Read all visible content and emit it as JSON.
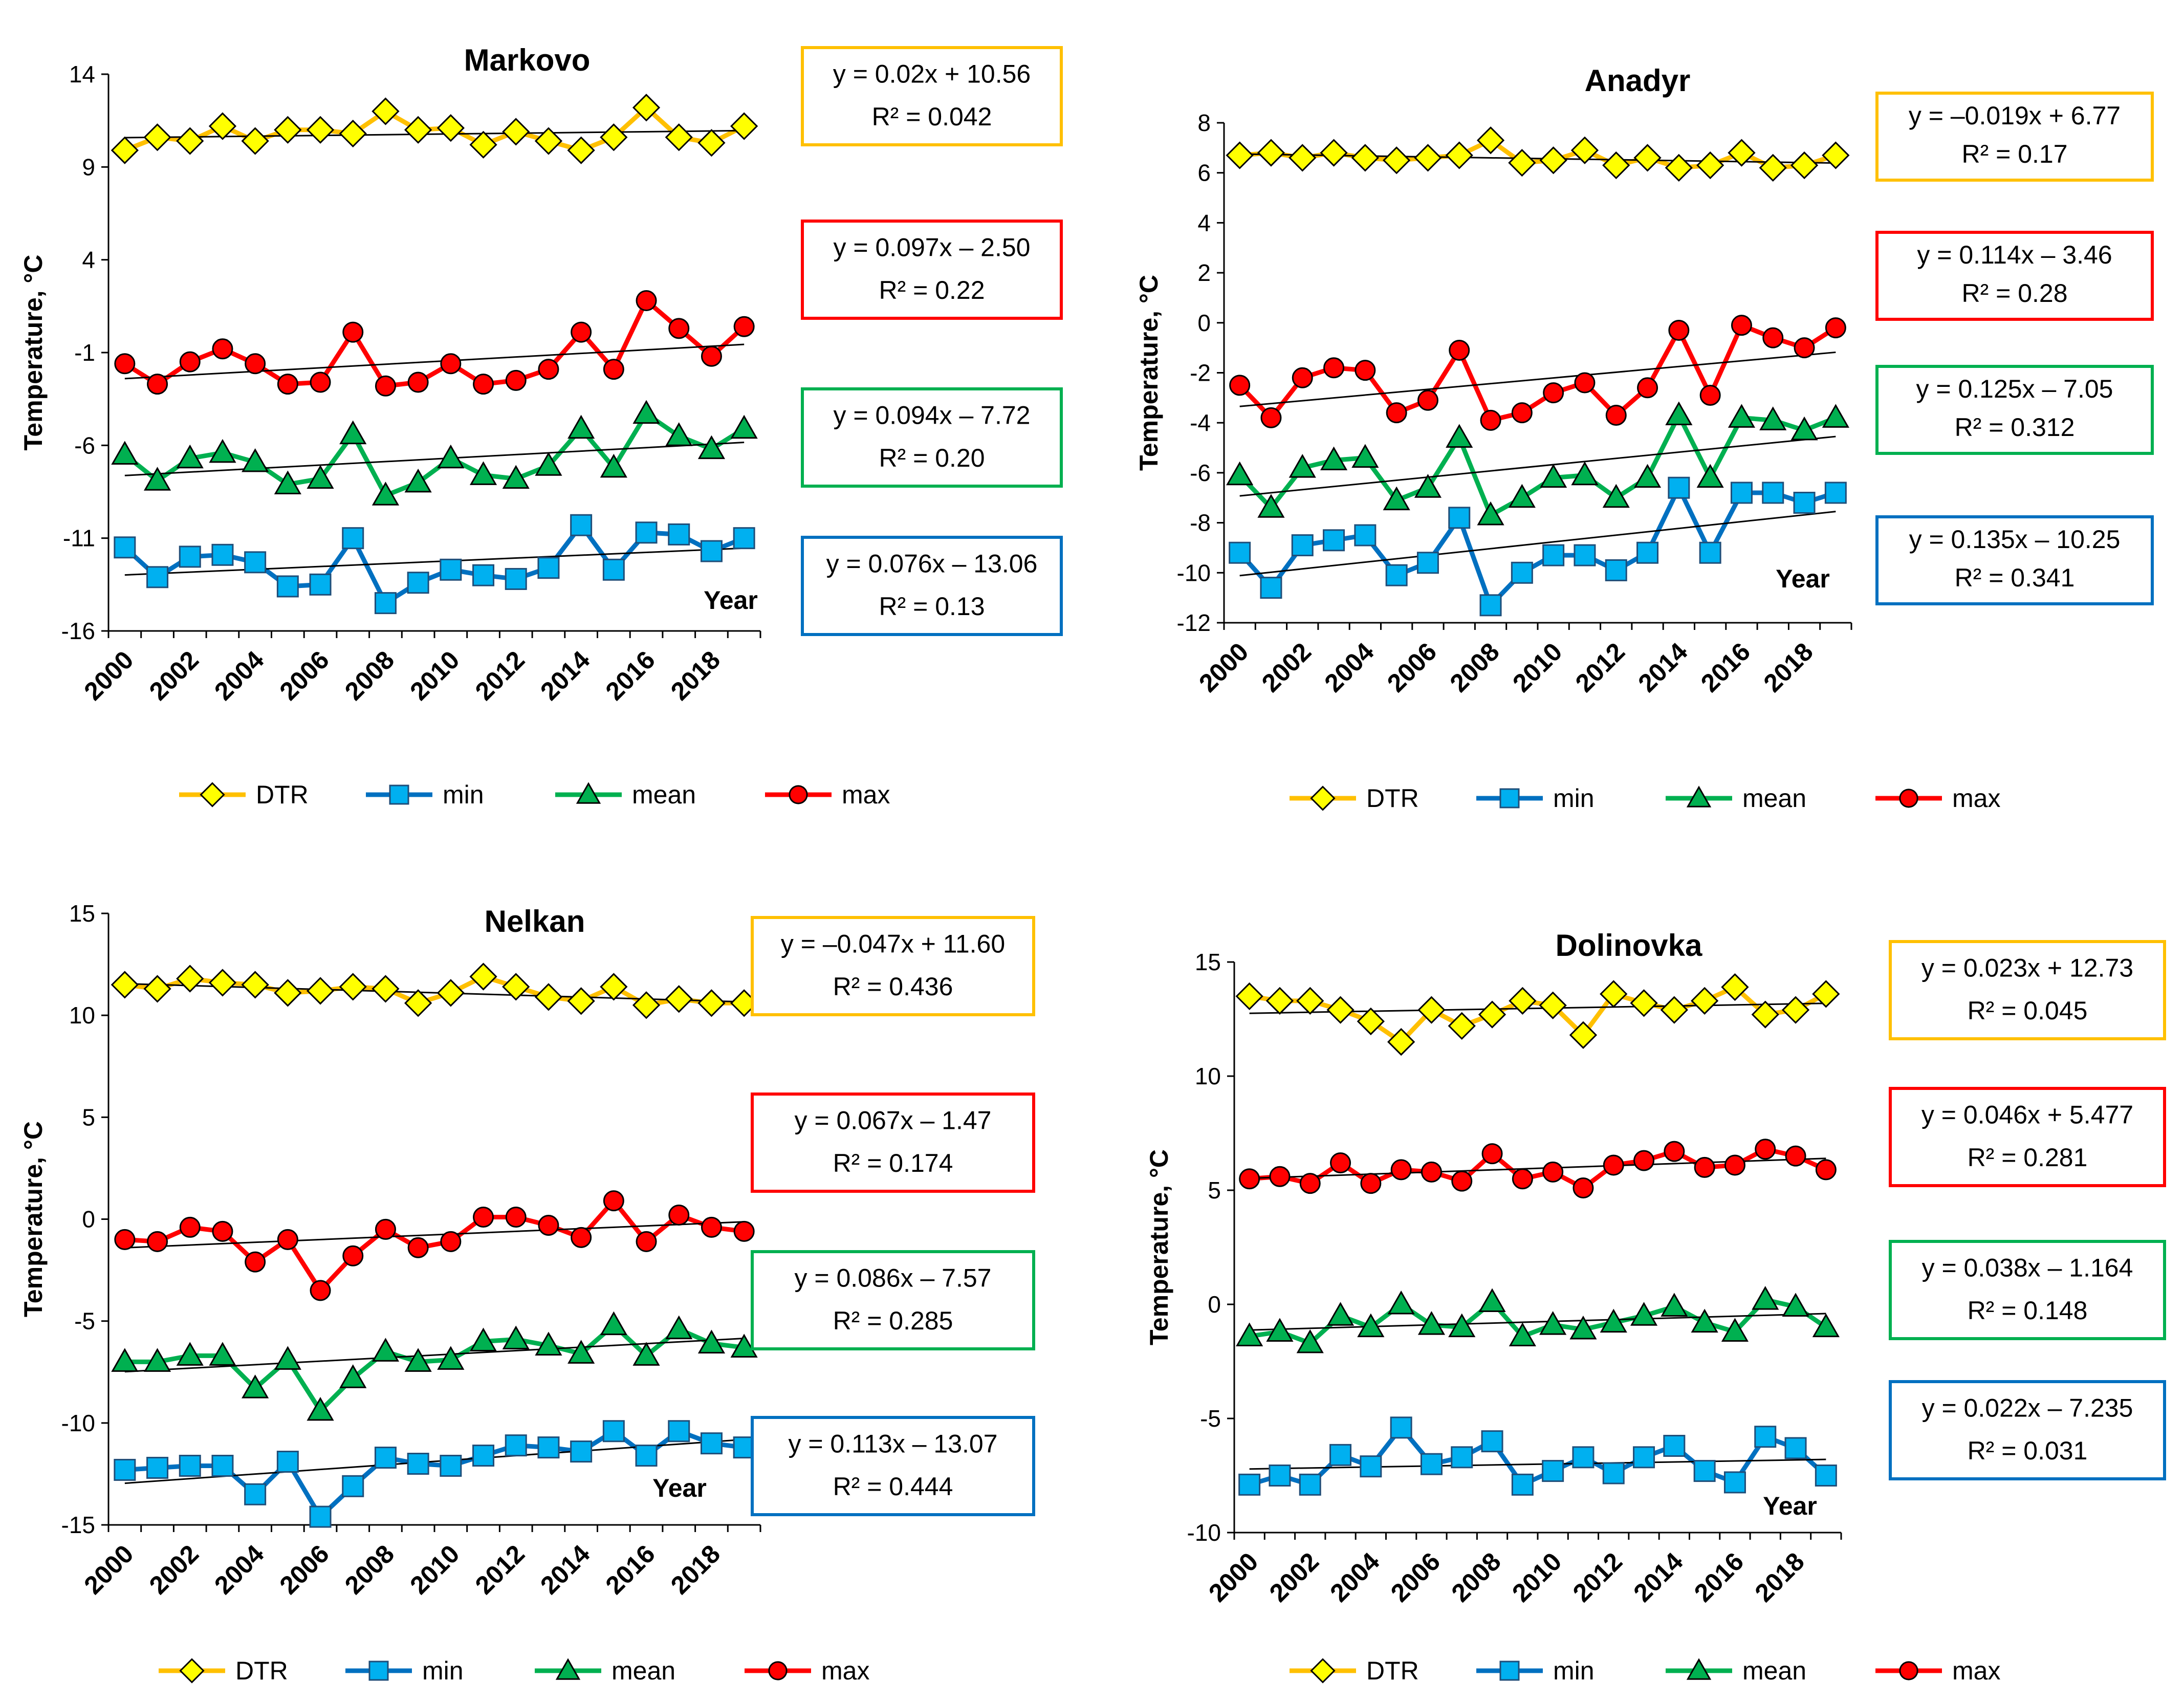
{
  "chart_data": [
    {
      "type": "line",
      "title": "Markovo",
      "xlabel": "Year",
      "ylabel": "Temperature, °C",
      "ylim": [
        -16,
        14
      ],
      "yticks": [
        "14",
        "9",
        "4",
        "-1",
        "-6",
        "-11",
        "-16"
      ],
      "xtick_labels": [
        "2000",
        "2002",
        "2004",
        "2006",
        "2008",
        "2010",
        "2012",
        "2014",
        "2016",
        "2018"
      ],
      "x": [
        2000,
        2001,
        2002,
        2003,
        2004,
        2005,
        2006,
        2007,
        2008,
        2009,
        2010,
        2011,
        2012,
        2013,
        2014,
        2015,
        2016,
        2017,
        2018,
        2019
      ],
      "series": [
        {
          "name": "DTR",
          "color": "#FFC000",
          "marker": "diamond",
          "fill": "#FFFF00",
          "values": [
            9.9,
            10.6,
            10.4,
            11.2,
            10.4,
            11.0,
            11.0,
            10.8,
            12.0,
            11.0,
            11.1,
            10.2,
            10.9,
            10.4,
            9.9,
            10.6,
            12.2,
            10.6,
            10.3,
            11.2
          ],
          "trend": {
            "slope": 0.02,
            "intercept": 10.56
          },
          "equation": "y = 0.02x + 10.56",
          "r2": "R² = 0.042"
        },
        {
          "name": "min",
          "color": "#0070C0",
          "marker": "square",
          "fill": "#00B0F0",
          "values": [
            -11.5,
            -13.1,
            -12.0,
            -11.9,
            -12.3,
            -13.6,
            -13.5,
            -11.0,
            -14.5,
            -13.4,
            -12.7,
            -13.0,
            -13.2,
            -12.6,
            -10.3,
            -12.7,
            -10.7,
            -10.8,
            -11.7,
            -11.0
          ],
          "trend": {
            "slope": 0.076,
            "intercept": -13.06
          },
          "equation": "y = 0.076x – 13.06",
          "r2": "R² = 0.13"
        },
        {
          "name": "mean",
          "color": "#00B050",
          "marker": "triangle",
          "fill": "#00B050",
          "values": [
            -6.5,
            -7.9,
            -6.7,
            -6.4,
            -6.9,
            -8.1,
            -7.8,
            -5.4,
            -8.7,
            -8.0,
            -6.7,
            -7.6,
            -7.8,
            -7.1,
            -5.1,
            -7.2,
            -4.3,
            -5.5,
            -6.2,
            -5.1
          ],
          "trend": {
            "slope": 0.094,
            "intercept": -7.72
          },
          "equation": "y = 0.094x – 7.72",
          "r2": "R² = 0.20"
        },
        {
          "name": "max",
          "color": "#FF0000",
          "marker": "circle",
          "fill": "#FF0000",
          "values": [
            -1.6,
            -2.7,
            -1.5,
            -0.8,
            -1.6,
            -2.7,
            -2.6,
            0.1,
            -2.8,
            -2.6,
            -1.6,
            -2.7,
            -2.5,
            -1.9,
            0.1,
            -1.9,
            1.8,
            0.3,
            -1.2,
            0.4
          ],
          "trend": {
            "slope": 0.097,
            "intercept": -2.5
          },
          "equation": "y = 0.097x – 2.50",
          "r2": "R² = 0.22"
        }
      ],
      "legend": [
        "DTR",
        "min",
        "mean",
        "max"
      ]
    },
    {
      "type": "line",
      "title": "Anadyr",
      "xlabel": "Year",
      "ylabel": "Temperature, °C",
      "ylim": [
        -12,
        8
      ],
      "yticks": [
        "8",
        "6",
        "4",
        "2",
        "0",
        "-2",
        "-4",
        "-6",
        "-8",
        "-10",
        "-12"
      ],
      "xtick_labels": [
        "2000",
        "2002",
        "2004",
        "2006",
        "2008",
        "2010",
        "2012",
        "2014",
        "2016",
        "2018"
      ],
      "x": [
        2000,
        2001,
        2002,
        2003,
        2004,
        2005,
        2006,
        2007,
        2008,
        2009,
        2010,
        2011,
        2012,
        2013,
        2014,
        2015,
        2016,
        2017,
        2018,
        2019
      ],
      "series": [
        {
          "name": "DTR",
          "color": "#FFC000",
          "marker": "diamond",
          "fill": "#FFFF00",
          "values": [
            6.7,
            6.8,
            6.6,
            6.8,
            6.6,
            6.5,
            6.6,
            6.7,
            7.3,
            6.4,
            6.5,
            6.9,
            6.3,
            6.6,
            6.2,
            6.3,
            6.8,
            6.2,
            6.3,
            6.7
          ],
          "trend": {
            "slope": -0.019,
            "intercept": 6.77
          },
          "equation": "y = –0.019x + 6.77",
          "r2": "R² = 0.17"
        },
        {
          "name": "min",
          "color": "#0070C0",
          "marker": "square",
          "fill": "#00B0F0",
          "values": [
            -9.2,
            -10.6,
            -8.9,
            -8.7,
            -8.5,
            -10.1,
            -9.6,
            -7.8,
            -11.3,
            -10.0,
            -9.3,
            -9.3,
            -9.9,
            -9.2,
            -6.6,
            -9.2,
            -6.8,
            -6.8,
            -7.2,
            -6.8
          ],
          "trend": {
            "slope": 0.135,
            "intercept": -10.25
          },
          "equation": "y = 0.135x – 10.25",
          "r2": "R² = 0.341"
        },
        {
          "name": "mean",
          "color": "#00B050",
          "marker": "triangle",
          "fill": "#00B050",
          "values": [
            -6.1,
            -7.4,
            -5.8,
            -5.5,
            -5.4,
            -7.1,
            -6.6,
            -4.6,
            -7.7,
            -7.0,
            -6.2,
            -6.1,
            -7.0,
            -6.2,
            -3.7,
            -6.2,
            -3.8,
            -3.9,
            -4.3,
            -3.8
          ],
          "trend": {
            "slope": 0.125,
            "intercept": -7.05
          },
          "equation": "y = 0.125x – 7.05",
          "r2": "R² = 0.312"
        },
        {
          "name": "max",
          "color": "#FF0000",
          "marker": "circle",
          "fill": "#FF0000",
          "values": [
            -2.5,
            -3.8,
            -2.2,
            -1.8,
            -1.9,
            -3.6,
            -3.1,
            -1.1,
            -3.9,
            -3.6,
            -2.8,
            -2.4,
            -3.7,
            -2.6,
            -0.3,
            -2.9,
            -0.1,
            -0.6,
            -1.0,
            -0.2
          ],
          "trend": {
            "slope": 0.114,
            "intercept": -3.46
          },
          "equation": "y = 0.114x – 3.46",
          "r2": "R² = 0.28"
        }
      ],
      "legend": [
        "DTR",
        "min",
        "mean",
        "max"
      ]
    },
    {
      "type": "line",
      "title": "Nelkan",
      "xlabel": "Year",
      "ylabel": "Temperature, °C",
      "ylim": [
        -15,
        15
      ],
      "yticks": [
        "15",
        "10",
        "5",
        "0",
        "-5",
        "-10",
        "-15"
      ],
      "xtick_labels": [
        "2000",
        "2002",
        "2004",
        "2006",
        "2008",
        "2010",
        "2012",
        "2014",
        "2016",
        "2018"
      ],
      "x": [
        2000,
        2001,
        2002,
        2003,
        2004,
        2005,
        2006,
        2007,
        2008,
        2009,
        2010,
        2011,
        2012,
        2013,
        2014,
        2015,
        2016,
        2017,
        2018,
        2019
      ],
      "series": [
        {
          "name": "DTR",
          "color": "#FFC000",
          "marker": "diamond",
          "fill": "#FFFF00",
          "values": [
            11.5,
            11.3,
            11.8,
            11.6,
            11.5,
            11.1,
            11.2,
            11.4,
            11.3,
            10.6,
            11.1,
            11.9,
            11.4,
            10.9,
            10.7,
            11.4,
            10.5,
            10.8,
            10.6,
            10.6
          ],
          "trend": {
            "slope": -0.047,
            "intercept": 11.6
          },
          "equation": "y = –0.047x + 11.60",
          "r2": "R² = 0.436"
        },
        {
          "name": "min",
          "color": "#0070C0",
          "marker": "square",
          "fill": "#00B0F0",
          "values": [
            -12.3,
            -12.2,
            -12.1,
            -12.1,
            -13.5,
            -11.9,
            -14.6,
            -13.1,
            -11.7,
            -12.0,
            -12.1,
            -11.6,
            -11.1,
            -11.2,
            -11.4,
            -10.4,
            -11.6,
            -10.4,
            -11.0,
            -11.2
          ],
          "trend": {
            "slope": 0.113,
            "intercept": -13.07
          },
          "equation": "y = 0.113x – 13.07",
          "r2": "R² = 0.444"
        },
        {
          "name": "mean",
          "color": "#00B050",
          "marker": "triangle",
          "fill": "#00B050",
          "values": [
            -7.0,
            -7.0,
            -6.7,
            -6.7,
            -8.3,
            -6.9,
            -9.4,
            -7.8,
            -6.5,
            -7.0,
            -6.9,
            -6.0,
            -5.9,
            -6.2,
            -6.6,
            -5.2,
            -6.7,
            -5.4,
            -6.1,
            -6.3
          ],
          "trend": {
            "slope": 0.086,
            "intercept": -7.57
          },
          "equation": "y = 0.086x – 7.57",
          "r2": "R² = 0.285"
        },
        {
          "name": "max",
          "color": "#FF0000",
          "marker": "circle",
          "fill": "#FF0000",
          "values": [
            -1.0,
            -1.1,
            -0.4,
            -0.6,
            -2.1,
            -1.0,
            -3.5,
            -1.8,
            -0.5,
            -1.4,
            -1.1,
            0.1,
            0.1,
            -0.3,
            -0.9,
            0.9,
            -1.1,
            0.2,
            -0.4,
            -0.6
          ],
          "trend": {
            "slope": 0.067,
            "intercept": -1.47
          },
          "equation": "y = 0.067x – 1.47",
          "r2": "R² = 0.174"
        }
      ],
      "legend": [
        "DTR",
        "min",
        "mean",
        "max"
      ]
    },
    {
      "type": "line",
      "title": "Dolinovka",
      "xlabel": "Year",
      "ylabel": "Temperature, °C",
      "ylim": [
        -10,
        15
      ],
      "yticks": [
        "15",
        "10",
        "5",
        "0",
        "-5",
        "-10"
      ],
      "xtick_labels": [
        "2000",
        "2002",
        "2004",
        "2006",
        "2008",
        "2010",
        "2012",
        "2014",
        "2016",
        "2018"
      ],
      "x": [
        2000,
        2001,
        2002,
        2003,
        2004,
        2005,
        2006,
        2007,
        2008,
        2009,
        2010,
        2011,
        2012,
        2013,
        2014,
        2015,
        2016,
        2017,
        2018,
        2019
      ],
      "series": [
        {
          "name": "DTR",
          "color": "#FFC000",
          "marker": "diamond",
          "fill": "#FFFF00",
          "values": [
            13.5,
            13.3,
            13.3,
            12.9,
            12.4,
            11.5,
            12.9,
            12.2,
            12.7,
            13.3,
            13.1,
            11.8,
            13.6,
            13.2,
            12.9,
            13.3,
            13.9,
            12.7,
            12.9,
            13.6
          ],
          "trend": {
            "slope": 0.023,
            "intercept": 12.73
          },
          "equation": "y = 0.023x + 12.73",
          "r2": "R² = 0.045"
        },
        {
          "name": "min",
          "color": "#0070C0",
          "marker": "square",
          "fill": "#00B0F0",
          "values": [
            -7.9,
            -7.5,
            -7.9,
            -6.6,
            -7.1,
            -5.4,
            -7.0,
            -6.7,
            -6.0,
            -7.9,
            -7.3,
            -6.7,
            -7.4,
            -6.7,
            -6.2,
            -7.3,
            -7.8,
            -5.8,
            -6.3,
            -7.5
          ],
          "trend": {
            "slope": 0.022,
            "intercept": -7.235
          },
          "equation": "y = 0.022x – 7.235",
          "r2": "R² = 0.031"
        },
        {
          "name": "mean",
          "color": "#00B050",
          "marker": "triangle",
          "fill": "#00B050",
          "values": [
            -1.4,
            -1.2,
            -1.7,
            -0.5,
            -1.0,
            0.0,
            -0.9,
            -1.0,
            0.1,
            -1.4,
            -0.9,
            -1.1,
            -0.8,
            -0.5,
            -0.1,
            -0.8,
            -1.2,
            0.2,
            -0.1,
            -1.0
          ],
          "trend": {
            "slope": 0.038,
            "intercept": -1.164
          },
          "equation": "y = 0.038x – 1.164",
          "r2": "R² = 0.148"
        },
        {
          "name": "max",
          "color": "#FF0000",
          "marker": "circle",
          "fill": "#FF0000",
          "values": [
            5.5,
            5.6,
            5.3,
            6.2,
            5.3,
            5.9,
            5.8,
            5.4,
            6.6,
            5.5,
            5.8,
            5.1,
            6.1,
            6.3,
            6.7,
            6.0,
            6.1,
            6.8,
            6.5,
            5.9
          ],
          "trend": {
            "slope": 0.046,
            "intercept": 5.477
          },
          "equation": "y = 0.046x + 5.477",
          "r2": "R² = 0.281"
        }
      ],
      "legend": [
        "DTR",
        "min",
        "mean",
        "max"
      ]
    }
  ]
}
